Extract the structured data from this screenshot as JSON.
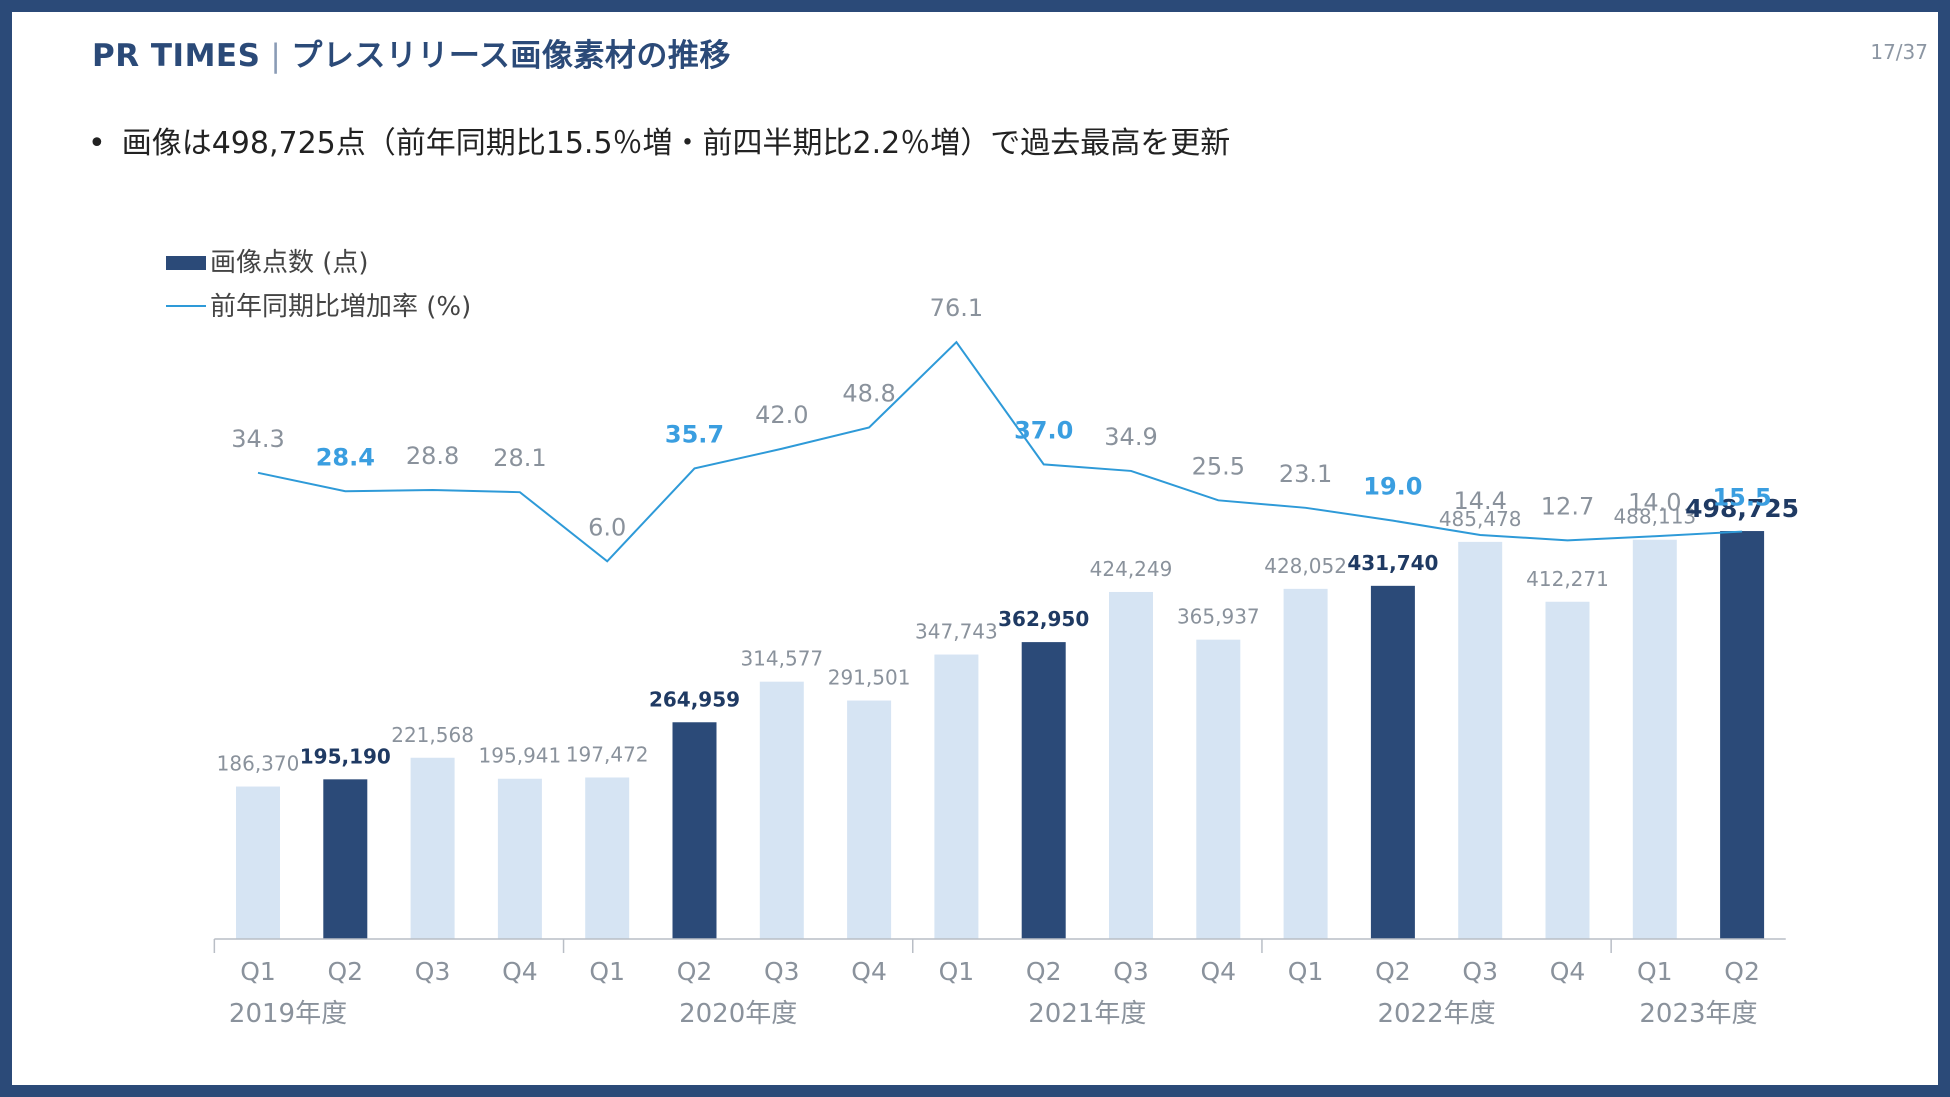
{
  "header": {
    "brand": "PR TIMES",
    "separator": "|",
    "title": "プレスリリース画像素材の推移",
    "page_number": "17/37"
  },
  "summary": {
    "bullet": "•",
    "text": "画像は498,725点（前年同期比15.5％増・前四半期比2.2％増）で過去最高を更新"
  },
  "colors": {
    "frame": "#2b4a78",
    "bar_dark": "#2b4a78",
    "bar_light": "#d6e4f3",
    "line": "#2e9ad8",
    "label_gray": "#8a929c",
    "label_blue": "#3a9ee0",
    "label_dark": "#1f3a63"
  },
  "chart_data": {
    "type": "bar",
    "legend": [
      {
        "name": "画像点数 (点)",
        "kind": "bar"
      },
      {
        "name": "前年同期比増加率 (%)",
        "kind": "line"
      }
    ],
    "categories": [
      "Q1",
      "Q2",
      "Q3",
      "Q4",
      "Q1",
      "Q2",
      "Q3",
      "Q4",
      "Q1",
      "Q2",
      "Q3",
      "Q4",
      "Q1",
      "Q2",
      "Q3",
      "Q4",
      "Q1",
      "Q2"
    ],
    "years": [
      {
        "label": "2019年度",
        "start": 0,
        "end": 3
      },
      {
        "label": "2020年度",
        "start": 4,
        "end": 7
      },
      {
        "label": "2021年度",
        "start": 8,
        "end": 11
      },
      {
        "label": "2022年度",
        "start": 12,
        "end": 15
      },
      {
        "label": "2023年度",
        "start": 16,
        "end": 17
      }
    ],
    "series": [
      {
        "name": "画像点数 (点)",
        "type": "bar",
        "values": [
          186370,
          195190,
          221568,
          195941,
          197472,
          264959,
          314577,
          291501,
          347743,
          362950,
          424249,
          365937,
          428052,
          431740,
          485478,
          412271,
          488113,
          498725
        ],
        "labels": [
          "186,370",
          "195,190",
          "221,568",
          "195,941",
          "197,472",
          "264,959",
          "314,577",
          "291,501",
          "347,743",
          "362,950",
          "424,249",
          "365,937",
          "428,052",
          "431,740",
          "485,478",
          "412,271",
          "488,113",
          "498,725"
        ],
        "highlight": [
          false,
          true,
          false,
          false,
          false,
          true,
          false,
          false,
          false,
          true,
          false,
          false,
          false,
          true,
          false,
          false,
          false,
          true
        ]
      },
      {
        "name": "前年同期比増加率 (%)",
        "type": "line",
        "values": [
          34.3,
          28.4,
          28.8,
          28.1,
          6.0,
          35.7,
          42.0,
          48.8,
          76.1,
          37.0,
          34.9,
          25.5,
          23.1,
          19.0,
          14.4,
          12.7,
          14.0,
          15.5
        ],
        "labels": [
          "34.3",
          "28.4",
          "28.8",
          "28.1",
          "6.0",
          "35.7",
          "42.0",
          "48.8",
          "76.1",
          "37.0",
          "34.9",
          "25.5",
          "23.1",
          "19.0",
          "14.4",
          "12.7",
          "14.0",
          "15.5"
        ],
        "highlight": [
          false,
          true,
          false,
          false,
          false,
          true,
          false,
          false,
          false,
          true,
          false,
          false,
          false,
          true,
          false,
          false,
          false,
          true
        ]
      }
    ],
    "ylim_bars": [
      0,
      500000
    ],
    "ylim_line": [
      0,
      80
    ]
  }
}
